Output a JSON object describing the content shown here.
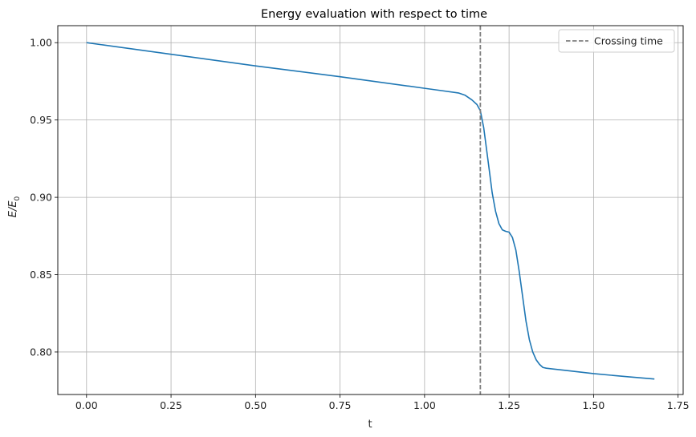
{
  "chart_data": {
    "type": "line",
    "title": "Energy evaluation with respect to time",
    "xlabel": "t",
    "ylabel": "E/E",
    "ylabel_subscript": "0",
    "xlim": [
      -0.085,
      1.765
    ],
    "ylim": [
      0.7725,
      1.011
    ],
    "xticks": [
      0.0,
      0.25,
      0.5,
      0.75,
      1.0,
      1.25,
      1.5,
      1.75
    ],
    "xtick_labels": [
      "0.00",
      "0.25",
      "0.50",
      "0.75",
      "1.00",
      "1.25",
      "1.50",
      "1.75"
    ],
    "yticks": [
      0.8,
      0.85,
      0.9,
      0.95,
      1.0
    ],
    "ytick_labels": [
      "0.80",
      "0.85",
      "0.90",
      "0.95",
      "1.00"
    ],
    "grid": true,
    "legend": {
      "location": "top-right",
      "entries": [
        {
          "label": "Crossing time",
          "style": "dashed",
          "color": "#7f7f7f"
        }
      ]
    },
    "series": [
      {
        "color": "#1f77b4",
        "x": [
          0.0,
          0.25,
          0.5,
          0.75,
          1.0,
          1.05,
          1.1,
          1.12,
          1.14,
          1.155,
          1.165,
          1.175,
          1.19,
          1.2,
          1.21,
          1.22,
          1.23,
          1.24,
          1.25,
          1.26,
          1.27,
          1.28,
          1.29,
          1.3,
          1.31,
          1.32,
          1.33,
          1.34,
          1.35,
          1.36,
          1.38,
          1.42,
          1.5,
          1.6,
          1.68
        ],
        "y": [
          1.0,
          0.9925,
          0.985,
          0.978,
          0.9705,
          0.969,
          0.9675,
          0.966,
          0.963,
          0.96,
          0.956,
          0.945,
          0.92,
          0.903,
          0.891,
          0.883,
          0.879,
          0.878,
          0.8775,
          0.874,
          0.866,
          0.852,
          0.836,
          0.82,
          0.808,
          0.8,
          0.795,
          0.792,
          0.79,
          0.7895,
          0.789,
          0.788,
          0.786,
          0.784,
          0.7825
        ]
      }
    ],
    "vlines": [
      {
        "x": 1.165,
        "label": "Crossing time",
        "color": "#7f7f7f"
      }
    ]
  }
}
